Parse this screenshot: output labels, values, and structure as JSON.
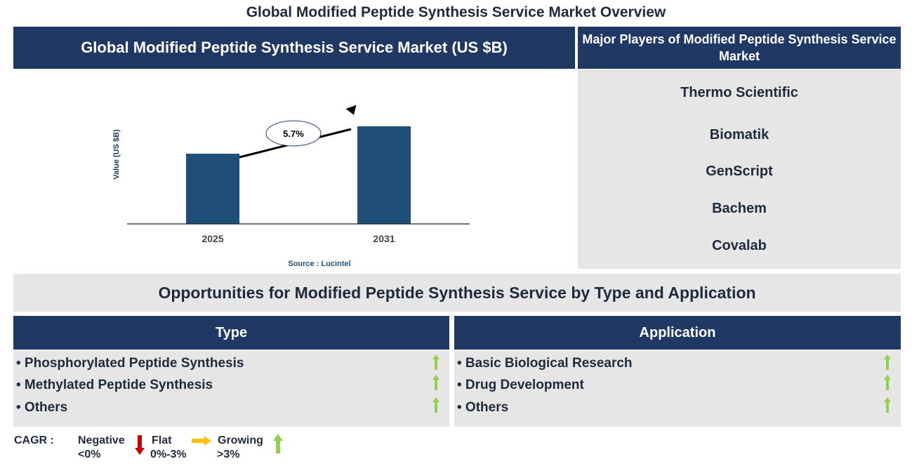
{
  "title": "Global Modified Peptide Synthesis Service Market Overview",
  "chart_header": "Global Modified Peptide Synthesis Service Market (US $B)",
  "chart_data": {
    "type": "bar",
    "categories": [
      "2025",
      "2031"
    ],
    "values": [
      1.0,
      1.39
    ],
    "ylabel": "Value (US $B)",
    "xlabel": "",
    "annotation": "5.7%",
    "source": "Source : Lucintel",
    "bar_color": "#1f4e79",
    "grid": false
  },
  "players": {
    "header": "Major Players of Modified Peptide Synthesis Service Market",
    "items": [
      "Thermo Scientific",
      "Biomatik",
      "GenScript",
      "Bachem",
      "Covalab"
    ]
  },
  "opportunities": "Opportunities for Modified Peptide Synthesis Service by Type and Application",
  "type": {
    "header": "Type",
    "items": [
      "• Phosphorylated Peptide Synthesis",
      "• Methylated Peptide Synthesis",
      "• Others"
    ],
    "trend": [
      "growing",
      "growing",
      "growing"
    ]
  },
  "application": {
    "header": "Application",
    "items": [
      "• Basic Biological Research",
      "• Drug Development",
      "• Others"
    ],
    "trend": [
      "growing",
      "growing",
      "growing"
    ]
  },
  "legend": {
    "label": "CAGR :",
    "negative": "Negative",
    "negative_range": "<0%",
    "flat": "Flat",
    "flat_range": "0%-3%",
    "growing": "Growing",
    "growing_range": ">3%"
  },
  "colors": {
    "navy": "#1f3864",
    "negative": "#c00000",
    "flat": "#ffc000",
    "growing": "#92d050"
  }
}
